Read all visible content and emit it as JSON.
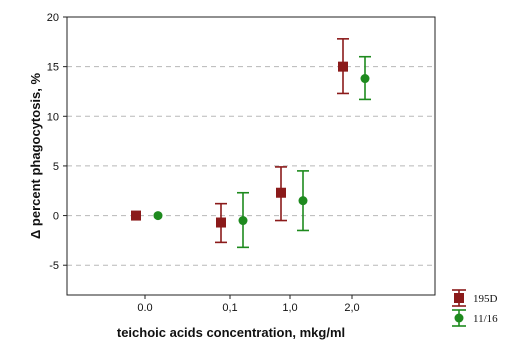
{
  "chart_data": {
    "type": "scatter",
    "title": "",
    "xlabel": "teichoic acids concentration, mkg/ml",
    "ylabel": "Δ percent phagocytosis, %",
    "categories": [
      "0.0",
      "0,1",
      "1,0",
      "2,0"
    ],
    "ylim": [
      -8,
      20
    ],
    "yticks": [
      -5,
      0,
      5,
      10,
      15,
      20
    ],
    "grid": "horizontal-dashed",
    "legend_position": "bottom-right",
    "series": [
      {
        "name": "195D",
        "color": "#8b1a1a",
        "marker": "square",
        "values": [
          0.0,
          -0.7,
          2.3,
          15.0
        ],
        "err_low": [
          0.0,
          -2.7,
          -0.5,
          12.3
        ],
        "err_high": [
          0.0,
          1.2,
          4.9,
          17.8
        ]
      },
      {
        "name": "11/16",
        "color": "#1e8a1e",
        "marker": "circle",
        "values": [
          0.0,
          -0.5,
          1.5,
          13.8
        ],
        "err_low": [
          0.0,
          -3.2,
          -1.5,
          11.7
        ],
        "err_high": [
          0.0,
          2.3,
          4.5,
          16.0
        ]
      }
    ]
  }
}
